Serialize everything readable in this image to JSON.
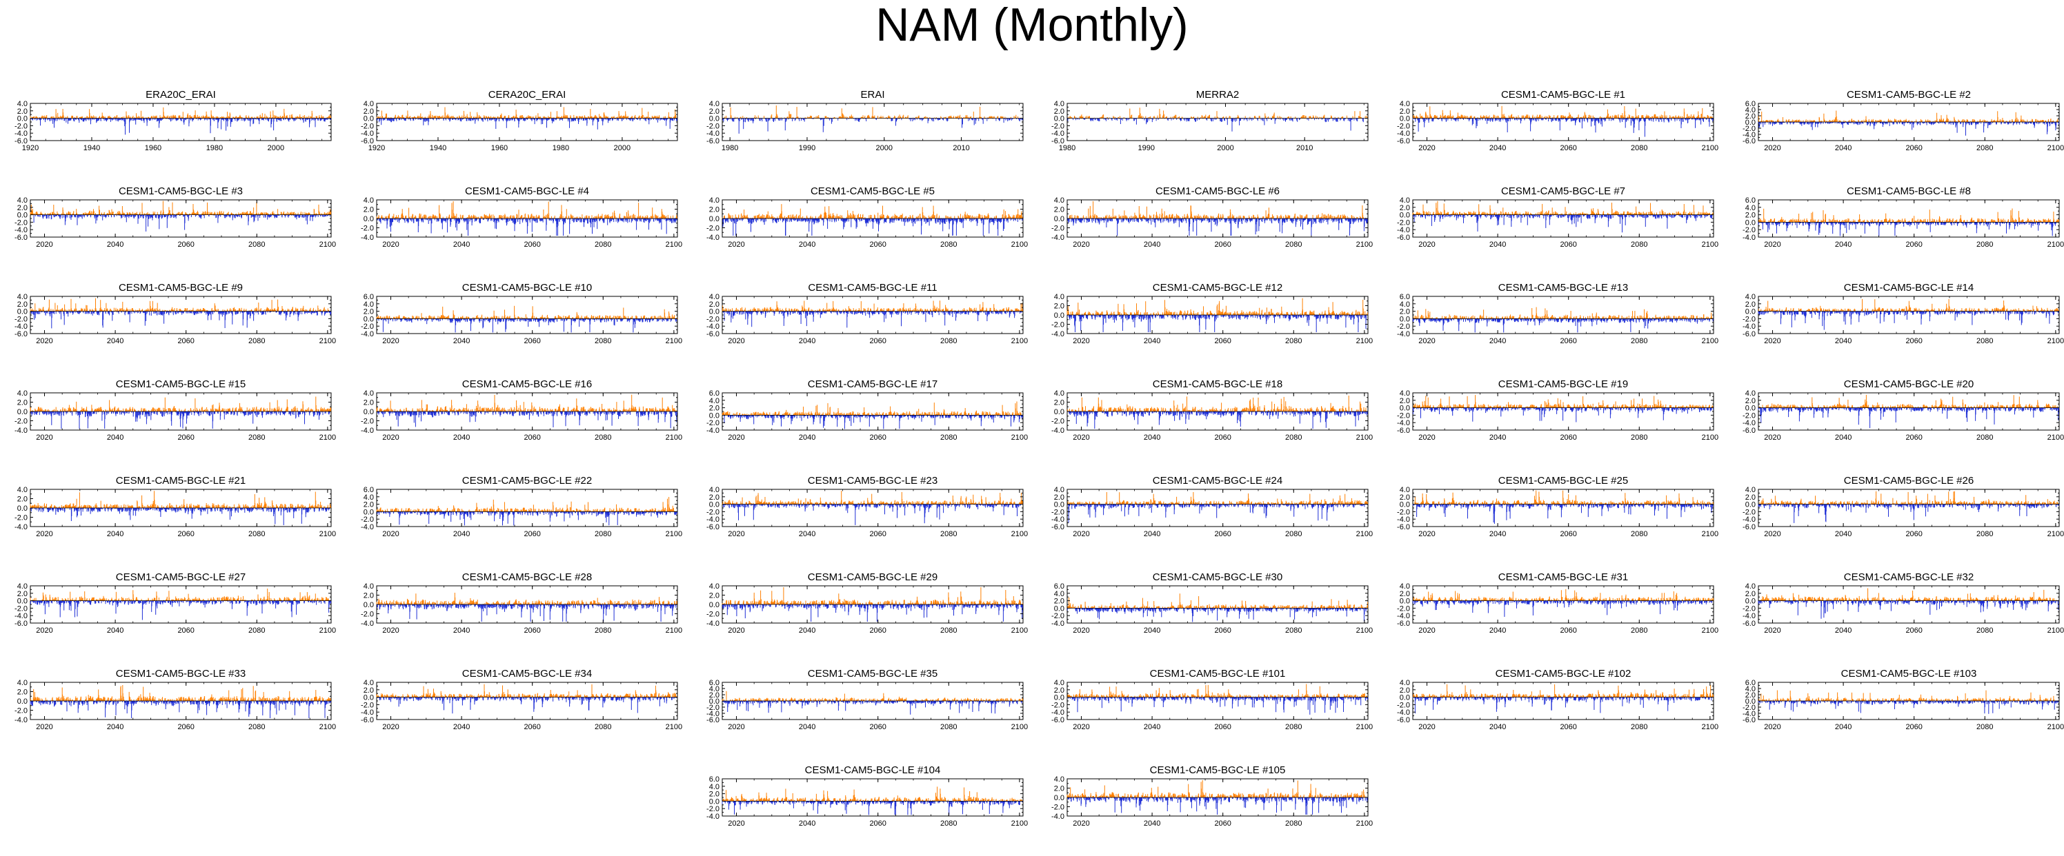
{
  "page": {
    "title": "NAM (Monthly)"
  },
  "colors": {
    "positive": "#ff8000",
    "negative": "#1f2fd6",
    "axis": "#000000",
    "zero_line": "#000000"
  },
  "chart_data": {
    "type": "bar",
    "description_of_values": "monthly index values; positive in orange, negative in blue",
    "panels": [
      {
        "title": "ERA20C_ERAI",
        "xlim": [
          1920,
          2018
        ],
        "xticks": [
          1920,
          1940,
          1960,
          1980,
          2000
        ],
        "ylim": [
          -6,
          4
        ],
        "yticks": [
          -6,
          -4,
          -2,
          0,
          2,
          4
        ],
        "seed": 11,
        "amp": 1.0
      },
      {
        "title": "CERA20C_ERAI",
        "xlim": [
          1920,
          2018
        ],
        "xticks": [
          1920,
          1940,
          1960,
          1980,
          2000
        ],
        "ylim": [
          -6,
          4
        ],
        "yticks": [
          -6,
          -4,
          -2,
          0,
          2,
          4
        ],
        "seed": 12,
        "amp": 1.0
      },
      {
        "title": "ERAI",
        "xlim": [
          1979,
          2018
        ],
        "xticks": [
          1980,
          1990,
          2000,
          2010
        ],
        "ylim": [
          -6,
          4
        ],
        "yticks": [
          -6,
          -4,
          -2,
          0,
          2,
          4
        ],
        "seed": 13,
        "amp": 1.1
      },
      {
        "title": "MERRA2",
        "xlim": [
          1980,
          2018
        ],
        "xticks": [
          1980,
          1990,
          2000,
          2010
        ],
        "ylim": [
          -6,
          4
        ],
        "yticks": [
          -6,
          -4,
          -2,
          0,
          2,
          4
        ],
        "seed": 14,
        "amp": 1.1
      },
      {
        "title": "CESM1-CAM5-BGC-LE #1",
        "xlim": [
          2016,
          2101
        ],
        "xticks": [
          2020,
          2040,
          2060,
          2080,
          2100
        ],
        "ylim": [
          -6,
          4
        ],
        "yticks": [
          -6,
          -4,
          -2,
          0,
          2,
          4
        ],
        "seed": 21,
        "amp": 1.2
      },
      {
        "title": "CESM1-CAM5-BGC-LE #2",
        "xlim": [
          2016,
          2101
        ],
        "xticks": [
          2020,
          2040,
          2060,
          2080,
          2100
        ],
        "ylim": [
          -6,
          6
        ],
        "yticks": [
          -6,
          -4,
          -2,
          0,
          2,
          4,
          6
        ],
        "seed": 22,
        "amp": 1.2
      },
      {
        "title": "CESM1-CAM5-BGC-LE #3",
        "xlim": [
          2016,
          2101
        ],
        "xticks": [
          2020,
          2040,
          2060,
          2080,
          2100
        ],
        "ylim": [
          -6,
          4
        ],
        "yticks": [
          -6,
          -4,
          -2,
          0,
          2,
          4
        ],
        "seed": 23,
        "amp": 1.2
      },
      {
        "title": "CESM1-CAM5-BGC-LE #4",
        "xlim": [
          2016,
          2101
        ],
        "xticks": [
          2020,
          2040,
          2060,
          2080,
          2100
        ],
        "ylim": [
          -4,
          4
        ],
        "yticks": [
          -4,
          -2,
          0,
          2,
          4
        ],
        "seed": 24,
        "amp": 1.2
      },
      {
        "title": "CESM1-CAM5-BGC-LE #5",
        "xlim": [
          2016,
          2101
        ],
        "xticks": [
          2020,
          2040,
          2060,
          2080,
          2100
        ],
        "ylim": [
          -4,
          4
        ],
        "yticks": [
          -4,
          -2,
          0,
          2,
          4
        ],
        "seed": 25,
        "amp": 1.2
      },
      {
        "title": "CESM1-CAM5-BGC-LE #6",
        "xlim": [
          2016,
          2101
        ],
        "xticks": [
          2020,
          2040,
          2060,
          2080,
          2100
        ],
        "ylim": [
          -4,
          4
        ],
        "yticks": [
          -4,
          -2,
          0,
          2,
          4
        ],
        "seed": 26,
        "amp": 1.2
      },
      {
        "title": "CESM1-CAM5-BGC-LE #7",
        "xlim": [
          2016,
          2101
        ],
        "xticks": [
          2020,
          2040,
          2060,
          2080,
          2100
        ],
        "ylim": [
          -6,
          4
        ],
        "yticks": [
          -6,
          -4,
          -2,
          0,
          2,
          4
        ],
        "seed": 27,
        "amp": 1.2
      },
      {
        "title": "CESM1-CAM5-BGC-LE #8",
        "xlim": [
          2016,
          2101
        ],
        "xticks": [
          2020,
          2040,
          2060,
          2080,
          2100
        ],
        "ylim": [
          -4,
          6
        ],
        "yticks": [
          -4,
          -2,
          0,
          2,
          4,
          6
        ],
        "seed": 28,
        "amp": 1.2
      },
      {
        "title": "CESM1-CAM5-BGC-LE #9",
        "xlim": [
          2016,
          2101
        ],
        "xticks": [
          2020,
          2040,
          2060,
          2080,
          2100
        ],
        "ylim": [
          -6,
          4
        ],
        "yticks": [
          -6,
          -4,
          -2,
          0,
          2,
          4
        ],
        "seed": 29,
        "amp": 1.2
      },
      {
        "title": "CESM1-CAM5-BGC-LE #10",
        "xlim": [
          2016,
          2101
        ],
        "xticks": [
          2020,
          2040,
          2060,
          2080,
          2100
        ],
        "ylim": [
          -4,
          6
        ],
        "yticks": [
          -4,
          -2,
          0,
          2,
          4,
          6
        ],
        "seed": 30,
        "amp": 1.2
      },
      {
        "title": "CESM1-CAM5-BGC-LE #11",
        "xlim": [
          2016,
          2101
        ],
        "xticks": [
          2020,
          2040,
          2060,
          2080,
          2100
        ],
        "ylim": [
          -6,
          4
        ],
        "yticks": [
          -6,
          -4,
          -2,
          0,
          2,
          4
        ],
        "seed": 31,
        "amp": 1.2
      },
      {
        "title": "CESM1-CAM5-BGC-LE #12",
        "xlim": [
          2016,
          2101
        ],
        "xticks": [
          2020,
          2040,
          2060,
          2080,
          2100
        ],
        "ylim": [
          -4,
          4
        ],
        "yticks": [
          -4,
          -2,
          0,
          2,
          4
        ],
        "seed": 32,
        "amp": 1.2
      },
      {
        "title": "CESM1-CAM5-BGC-LE #13",
        "xlim": [
          2016,
          2101
        ],
        "xticks": [
          2020,
          2040,
          2060,
          2080,
          2100
        ],
        "ylim": [
          -4,
          6
        ],
        "yticks": [
          -4,
          -2,
          0,
          2,
          4,
          6
        ],
        "seed": 33,
        "amp": 1.2
      },
      {
        "title": "CESM1-CAM5-BGC-LE #14",
        "xlim": [
          2016,
          2101
        ],
        "xticks": [
          2020,
          2040,
          2060,
          2080,
          2100
        ],
        "ylim": [
          -6,
          4
        ],
        "yticks": [
          -6,
          -4,
          -2,
          0,
          2,
          4
        ],
        "seed": 34,
        "amp": 1.2
      },
      {
        "title": "CESM1-CAM5-BGC-LE #15",
        "xlim": [
          2016,
          2101
        ],
        "xticks": [
          2020,
          2040,
          2060,
          2080,
          2100
        ],
        "ylim": [
          -4,
          4
        ],
        "yticks": [
          -4,
          -2,
          0,
          2,
          4
        ],
        "seed": 35,
        "amp": 1.2
      },
      {
        "title": "CESM1-CAM5-BGC-LE #16",
        "xlim": [
          2016,
          2101
        ],
        "xticks": [
          2020,
          2040,
          2060,
          2080,
          2100
        ],
        "ylim": [
          -4,
          4
        ],
        "yticks": [
          -4,
          -2,
          0,
          2,
          4
        ],
        "seed": 36,
        "amp": 1.2
      },
      {
        "title": "CESM1-CAM5-BGC-LE #17",
        "xlim": [
          2016,
          2101
        ],
        "xticks": [
          2020,
          2040,
          2060,
          2080,
          2100
        ],
        "ylim": [
          -4,
          6
        ],
        "yticks": [
          -4,
          -2,
          0,
          2,
          4,
          6
        ],
        "seed": 37,
        "amp": 1.2
      },
      {
        "title": "CESM1-CAM5-BGC-LE #18",
        "xlim": [
          2016,
          2101
        ],
        "xticks": [
          2020,
          2040,
          2060,
          2080,
          2100
        ],
        "ylim": [
          -4,
          4
        ],
        "yticks": [
          -4,
          -2,
          0,
          2,
          4
        ],
        "seed": 38,
        "amp": 1.2
      },
      {
        "title": "CESM1-CAM5-BGC-LE #19",
        "xlim": [
          2016,
          2101
        ],
        "xticks": [
          2020,
          2040,
          2060,
          2080,
          2100
        ],
        "ylim": [
          -6,
          4
        ],
        "yticks": [
          -6,
          -4,
          -2,
          0,
          2,
          4
        ],
        "seed": 39,
        "amp": 1.2
      },
      {
        "title": "CESM1-CAM5-BGC-LE #20",
        "xlim": [
          2016,
          2101
        ],
        "xticks": [
          2020,
          2040,
          2060,
          2080,
          2100
        ],
        "ylim": [
          -6,
          4
        ],
        "yticks": [
          -6,
          -4,
          -2,
          0,
          2,
          4
        ],
        "seed": 40,
        "amp": 1.2
      },
      {
        "title": "CESM1-CAM5-BGC-LE #21",
        "xlim": [
          2016,
          2101
        ],
        "xticks": [
          2020,
          2040,
          2060,
          2080,
          2100
        ],
        "ylim": [
          -4,
          4
        ],
        "yticks": [
          -4,
          -2,
          0,
          2,
          4
        ],
        "seed": 41,
        "amp": 1.2
      },
      {
        "title": "CESM1-CAM5-BGC-LE #22",
        "xlim": [
          2016,
          2101
        ],
        "xticks": [
          2020,
          2040,
          2060,
          2080,
          2100
        ],
        "ylim": [
          -4,
          6
        ],
        "yticks": [
          -4,
          -2,
          0,
          2,
          4,
          6
        ],
        "seed": 42,
        "amp": 1.2
      },
      {
        "title": "CESM1-CAM5-BGC-LE #23",
        "xlim": [
          2016,
          2101
        ],
        "xticks": [
          2020,
          2040,
          2060,
          2080,
          2100
        ],
        "ylim": [
          -6,
          4
        ],
        "yticks": [
          -6,
          -4,
          -2,
          0,
          2,
          4
        ],
        "seed": 43,
        "amp": 1.2
      },
      {
        "title": "CESM1-CAM5-BGC-LE #24",
        "xlim": [
          2016,
          2101
        ],
        "xticks": [
          2020,
          2040,
          2060,
          2080,
          2100
        ],
        "ylim": [
          -6,
          4
        ],
        "yticks": [
          -6,
          -4,
          -2,
          0,
          2,
          4
        ],
        "seed": 44,
        "amp": 1.2
      },
      {
        "title": "CESM1-CAM5-BGC-LE #25",
        "xlim": [
          2016,
          2101
        ],
        "xticks": [
          2020,
          2040,
          2060,
          2080,
          2100
        ],
        "ylim": [
          -6,
          4
        ],
        "yticks": [
          -6,
          -4,
          -2,
          0,
          2,
          4
        ],
        "seed": 45,
        "amp": 1.2
      },
      {
        "title": "CESM1-CAM5-BGC-LE #26",
        "xlim": [
          2016,
          2101
        ],
        "xticks": [
          2020,
          2040,
          2060,
          2080,
          2100
        ],
        "ylim": [
          -6,
          4
        ],
        "yticks": [
          -6,
          -4,
          -2,
          0,
          2,
          4
        ],
        "seed": 46,
        "amp": 1.2
      },
      {
        "title": "CESM1-CAM5-BGC-LE #27",
        "xlim": [
          2016,
          2101
        ],
        "xticks": [
          2020,
          2040,
          2060,
          2080,
          2100
        ],
        "ylim": [
          -6,
          4
        ],
        "yticks": [
          -6,
          -4,
          -2,
          0,
          2,
          4
        ],
        "seed": 47,
        "amp": 1.2
      },
      {
        "title": "CESM1-CAM5-BGC-LE #28",
        "xlim": [
          2016,
          2101
        ],
        "xticks": [
          2020,
          2040,
          2060,
          2080,
          2100
        ],
        "ylim": [
          -4,
          4
        ],
        "yticks": [
          -4,
          -2,
          0,
          2,
          4
        ],
        "seed": 48,
        "amp": 1.2
      },
      {
        "title": "CESM1-CAM5-BGC-LE #29",
        "xlim": [
          2016,
          2101
        ],
        "xticks": [
          2020,
          2040,
          2060,
          2080,
          2100
        ],
        "ylim": [
          -4,
          4
        ],
        "yticks": [
          -4,
          -2,
          0,
          2,
          4
        ],
        "seed": 49,
        "amp": 1.2
      },
      {
        "title": "CESM1-CAM5-BGC-LE #30",
        "xlim": [
          2016,
          2101
        ],
        "xticks": [
          2020,
          2040,
          2060,
          2080,
          2100
        ],
        "ylim": [
          -4,
          6
        ],
        "yticks": [
          -4,
          -2,
          0,
          2,
          4,
          6
        ],
        "seed": 50,
        "amp": 1.2
      },
      {
        "title": "CESM1-CAM5-BGC-LE #31",
        "xlim": [
          2016,
          2101
        ],
        "xticks": [
          2020,
          2040,
          2060,
          2080,
          2100
        ],
        "ylim": [
          -6,
          4
        ],
        "yticks": [
          -6,
          -4,
          -2,
          0,
          2,
          4
        ],
        "seed": 51,
        "amp": 1.2
      },
      {
        "title": "CESM1-CAM5-BGC-LE #32",
        "xlim": [
          2016,
          2101
        ],
        "xticks": [
          2020,
          2040,
          2060,
          2080,
          2100
        ],
        "ylim": [
          -6,
          4
        ],
        "yticks": [
          -6,
          -4,
          -2,
          0,
          2,
          4
        ],
        "seed": 52,
        "amp": 1.2
      },
      {
        "title": "CESM1-CAM5-BGC-LE #33",
        "xlim": [
          2016,
          2101
        ],
        "xticks": [
          2020,
          2040,
          2060,
          2080,
          2100
        ],
        "ylim": [
          -4,
          4
        ],
        "yticks": [
          -4,
          -2,
          0,
          2,
          4
        ],
        "seed": 53,
        "amp": 1.2
      },
      {
        "title": "CESM1-CAM5-BGC-LE #34",
        "xlim": [
          2016,
          2101
        ],
        "xticks": [
          2020,
          2040,
          2060,
          2080,
          2100
        ],
        "ylim": [
          -6,
          4
        ],
        "yticks": [
          -6,
          -4,
          -2,
          0,
          2,
          4
        ],
        "seed": 54,
        "amp": 1.2
      },
      {
        "title": "CESM1-CAM5-BGC-LE #35",
        "xlim": [
          2016,
          2101
        ],
        "xticks": [
          2020,
          2040,
          2060,
          2080,
          2100
        ],
        "ylim": [
          -6,
          6
        ],
        "yticks": [
          -6,
          -4,
          -2,
          0,
          2,
          4,
          6
        ],
        "seed": 55,
        "amp": 1.2
      },
      {
        "title": "CESM1-CAM5-BGC-LE #101",
        "xlim": [
          2016,
          2101
        ],
        "xticks": [
          2020,
          2040,
          2060,
          2080,
          2100
        ],
        "ylim": [
          -6,
          4
        ],
        "yticks": [
          -6,
          -4,
          -2,
          0,
          2,
          4
        ],
        "seed": 56,
        "amp": 1.2
      },
      {
        "title": "CESM1-CAM5-BGC-LE #102",
        "xlim": [
          2016,
          2101
        ],
        "xticks": [
          2020,
          2040,
          2060,
          2080,
          2100
        ],
        "ylim": [
          -6,
          4
        ],
        "yticks": [
          -6,
          -4,
          -2,
          0,
          2,
          4
        ],
        "seed": 57,
        "amp": 1.2
      },
      {
        "title": "CESM1-CAM5-BGC-LE #103",
        "xlim": [
          2016,
          2101
        ],
        "xticks": [
          2020,
          2040,
          2060,
          2080,
          2100
        ],
        "ylim": [
          -6,
          6
        ],
        "yticks": [
          -6,
          -4,
          -2,
          0,
          2,
          4,
          6
        ],
        "seed": 58,
        "amp": 1.2
      },
      {
        "title": "CESM1-CAM5-BGC-LE #104",
        "xlim": [
          2016,
          2101
        ],
        "xticks": [
          2020,
          2040,
          2060,
          2080,
          2100
        ],
        "ylim": [
          -4,
          6
        ],
        "yticks": [
          -4,
          -2,
          0,
          2,
          4,
          6
        ],
        "seed": 59,
        "amp": 1.2
      },
      {
        "title": "CESM1-CAM5-BGC-LE #105",
        "xlim": [
          2016,
          2101
        ],
        "xticks": [
          2020,
          2040,
          2060,
          2080,
          2100
        ],
        "ylim": [
          -4,
          4
        ],
        "yticks": [
          -4,
          -2,
          0,
          2,
          4
        ],
        "seed": 60,
        "amp": 1.2
      }
    ]
  }
}
